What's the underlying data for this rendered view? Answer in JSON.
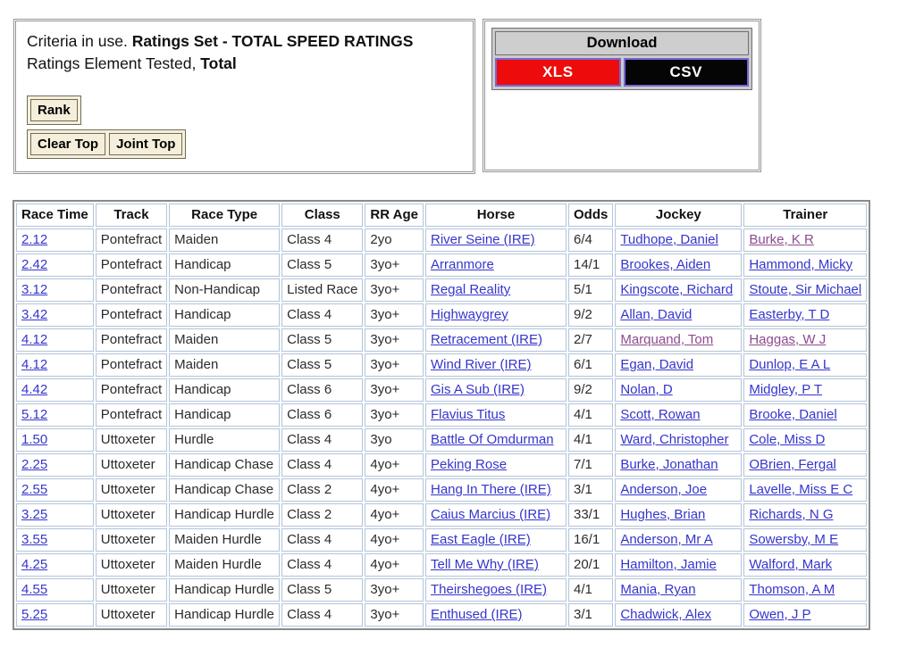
{
  "criteria": {
    "line1_prefix": "Criteria in use. ",
    "line1_bold": "Ratings Set - TOTAL SPEED RATINGS",
    "line2_prefix": "Ratings Element Tested, ",
    "line2_bold": "Total"
  },
  "buttons": {
    "rank": "Rank",
    "clear_top": "Clear Top",
    "joint_top": "Joint Top"
  },
  "download": {
    "title": "Download",
    "options": [
      {
        "label": "XLS",
        "bg": "#ee0b0b"
      },
      {
        "label": "CSV",
        "bg": "#050505"
      }
    ]
  },
  "colors": {
    "link_blue": "#3535cd",
    "visited_link_purple": "#8d4a8f",
    "cell_border_blue": "#b3c4d9",
    "button_cream": "#f5eeda",
    "download_border_purple": "#7665d8",
    "xls_red": "#ee0b0b",
    "csv_black": "#050505"
  },
  "table": {
    "headers": [
      "Race Time",
      "Track",
      "Race Type",
      "Class",
      "RR Age",
      "Horse",
      "Odds",
      "Jockey",
      "Trainer"
    ],
    "rows": [
      {
        "race_time": "2.12",
        "track": "Pontefract",
        "race_type": "Maiden",
        "class": "Class 4",
        "rr_age": "2yo",
        "horse": "River Seine (IRE)",
        "odds": "6/4",
        "jockey": "Tudhope, Daniel",
        "trainer": "Burke, K R",
        "jockey_visited": false,
        "trainer_visited": true
      },
      {
        "race_time": "2.42",
        "track": "Pontefract",
        "race_type": "Handicap",
        "class": "Class 5",
        "rr_age": "3yo+",
        "horse": "Arranmore",
        "odds": "14/1",
        "jockey": "Brookes, Aiden",
        "trainer": "Hammond, Micky",
        "jockey_visited": false,
        "trainer_visited": false
      },
      {
        "race_time": "3.12",
        "track": "Pontefract",
        "race_type": "Non-Handicap",
        "class": "Listed Race",
        "rr_age": "3yo+",
        "horse": "Regal Reality",
        "odds": "5/1",
        "jockey": "Kingscote, Richard",
        "trainer": "Stoute, Sir Michael",
        "jockey_visited": false,
        "trainer_visited": false
      },
      {
        "race_time": "3.42",
        "track": "Pontefract",
        "race_type": "Handicap",
        "class": "Class 4",
        "rr_age": "3yo+",
        "horse": "Highwaygrey",
        "odds": "9/2",
        "jockey": "Allan, David",
        "trainer": "Easterby, T D",
        "jockey_visited": false,
        "trainer_visited": false
      },
      {
        "race_time": "4.12",
        "track": "Pontefract",
        "race_type": "Maiden",
        "class": "Class 5",
        "rr_age": "3yo+",
        "horse": "Retracement (IRE)",
        "odds": "2/7",
        "jockey": "Marquand, Tom",
        "trainer": "Haggas, W J",
        "jockey_visited": true,
        "trainer_visited": true
      },
      {
        "race_time": "4.12",
        "track": "Pontefract",
        "race_type": "Maiden",
        "class": "Class 5",
        "rr_age": "3yo+",
        "horse": "Wind River (IRE)",
        "odds": "6/1",
        "jockey": "Egan, David",
        "trainer": "Dunlop, E A L",
        "jockey_visited": false,
        "trainer_visited": false
      },
      {
        "race_time": "4.42",
        "track": "Pontefract",
        "race_type": "Handicap",
        "class": "Class 6",
        "rr_age": "3yo+",
        "horse": "Gis A Sub (IRE)",
        "odds": "9/2",
        "jockey": "Nolan, D",
        "trainer": "Midgley, P T",
        "jockey_visited": false,
        "trainer_visited": false
      },
      {
        "race_time": "5.12",
        "track": "Pontefract",
        "race_type": "Handicap",
        "class": "Class 6",
        "rr_age": "3yo+",
        "horse": "Flavius Titus",
        "odds": "4/1",
        "jockey": "Scott, Rowan",
        "trainer": "Brooke, Daniel",
        "jockey_visited": false,
        "trainer_visited": false
      },
      {
        "race_time": "1.50",
        "track": "Uttoxeter",
        "race_type": "Hurdle",
        "class": "Class 4",
        "rr_age": "3yo",
        "horse": "Battle Of Omdurman",
        "odds": "4/1",
        "jockey": "Ward, Christopher",
        "trainer": "Cole, Miss D",
        "jockey_visited": false,
        "trainer_visited": false
      },
      {
        "race_time": "2.25",
        "track": "Uttoxeter",
        "race_type": "Handicap Chase",
        "class": "Class 4",
        "rr_age": "4yo+",
        "horse": "Peking Rose",
        "odds": "7/1",
        "jockey": "Burke, Jonathan",
        "trainer": "OBrien, Fergal",
        "jockey_visited": false,
        "trainer_visited": false
      },
      {
        "race_time": "2.55",
        "track": "Uttoxeter",
        "race_type": "Handicap Chase",
        "class": "Class 2",
        "rr_age": "4yo+",
        "horse": "Hang In There (IRE)",
        "odds": "3/1",
        "jockey": "Anderson, Joe",
        "trainer": "Lavelle, Miss E C",
        "jockey_visited": false,
        "trainer_visited": false
      },
      {
        "race_time": "3.25",
        "track": "Uttoxeter",
        "race_type": "Handicap Hurdle",
        "class": "Class 2",
        "rr_age": "4yo+",
        "horse": "Caius Marcius (IRE)",
        "odds": "33/1",
        "jockey": "Hughes, Brian",
        "trainer": "Richards, N G",
        "jockey_visited": false,
        "trainer_visited": false
      },
      {
        "race_time": "3.55",
        "track": "Uttoxeter",
        "race_type": "Maiden Hurdle",
        "class": "Class 4",
        "rr_age": "4yo+",
        "horse": "East Eagle (IRE)",
        "odds": "16/1",
        "jockey": "Anderson, Mr A",
        "trainer": "Sowersby, M E",
        "jockey_visited": false,
        "trainer_visited": false
      },
      {
        "race_time": "4.25",
        "track": "Uttoxeter",
        "race_type": "Maiden Hurdle",
        "class": "Class 4",
        "rr_age": "4yo+",
        "horse": "Tell Me Why (IRE)",
        "odds": "20/1",
        "jockey": "Hamilton, Jamie",
        "trainer": "Walford, Mark",
        "jockey_visited": false,
        "trainer_visited": false
      },
      {
        "race_time": "4.55",
        "track": "Uttoxeter",
        "race_type": "Handicap Hurdle",
        "class": "Class 5",
        "rr_age": "3yo+",
        "horse": "Theirshegoes (IRE)",
        "odds": "4/1",
        "jockey": "Mania, Ryan",
        "trainer": "Thomson, A M",
        "jockey_visited": false,
        "trainer_visited": false
      },
      {
        "race_time": "5.25",
        "track": "Uttoxeter",
        "race_type": "Handicap Hurdle",
        "class": "Class 4",
        "rr_age": "3yo+",
        "horse": "Enthused (IRE)",
        "odds": "3/1",
        "jockey": "Chadwick, Alex",
        "trainer": "Owen, J P",
        "jockey_visited": false,
        "trainer_visited": false
      }
    ]
  }
}
